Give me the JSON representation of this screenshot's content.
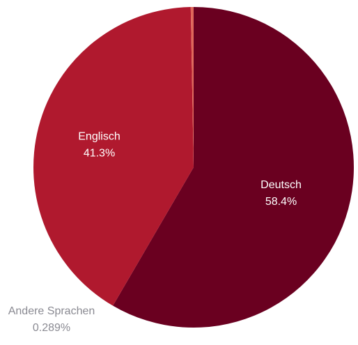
{
  "chart_data": {
    "type": "pie",
    "categories": [
      "Deutsch",
      "Englisch",
      "Andere Sprachen"
    ],
    "values": [
      58.4,
      41.3,
      0.289
    ],
    "value_labels": [
      "58.4%",
      "41.3%",
      "0.289%"
    ],
    "colors": [
      "#6a0020",
      "#b0192e",
      "#e0675a"
    ],
    "start_angle_deg": 0,
    "direction": "clockwise",
    "title": "",
    "legend": "none"
  }
}
